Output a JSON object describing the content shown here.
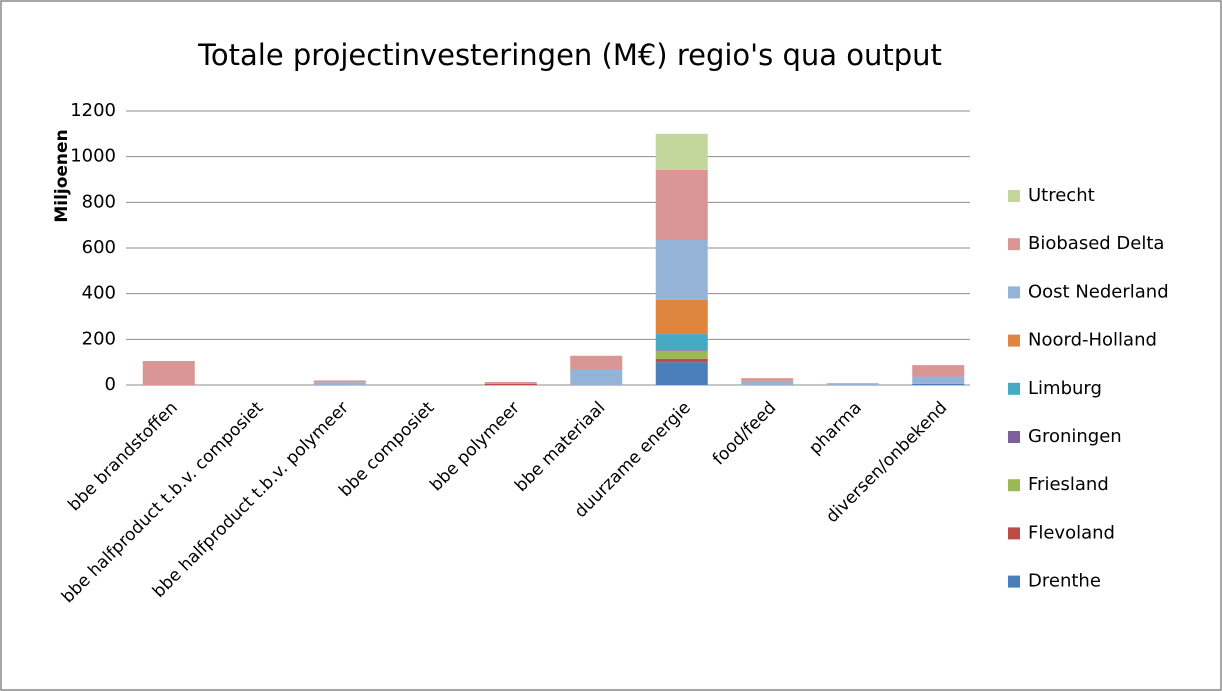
{
  "chart_data": {
    "type": "stacked_bar",
    "title": "Totale projectinvesteringen (M€) regio's qua output",
    "y_label": "Miljoenen",
    "categories": [
      "bbe brandstoffen",
      "bbe halfproduct t.b.v. composiet",
      "bbe halfproduct t.b.v. polymeer",
      "bbe composiet",
      "bbe polymeer",
      "bbe materiaal",
      "duurzame energie",
      "food/feed",
      "pharma",
      "diversen/onbekend"
    ],
    "series": [
      {
        "name": "Drenthe",
        "color": "#4a7ebb",
        "values": [
          0,
          0,
          0,
          0,
          0,
          0,
          100,
          0,
          0,
          5
        ]
      },
      {
        "name": "Flevoland",
        "color": "#be4b48",
        "values": [
          0,
          0,
          0,
          0,
          5,
          0,
          15,
          0,
          0,
          0
        ]
      },
      {
        "name": "Friesland",
        "color": "#98b954",
        "values": [
          0,
          0,
          0,
          0,
          0,
          0,
          35,
          0,
          0,
          0
        ]
      },
      {
        "name": "Groningen",
        "color": "#7d60a0",
        "values": [
          0,
          0,
          0,
          0,
          0,
          0,
          3,
          0,
          0,
          0
        ]
      },
      {
        "name": "Limburg",
        "color": "#46aac5",
        "values": [
          0,
          0,
          0,
          0,
          0,
          0,
          70,
          0,
          0,
          0
        ]
      },
      {
        "name": "Noord-Holland",
        "color": "#e0853e",
        "values": [
          0,
          0,
          0,
          0,
          0,
          0,
          150,
          0,
          0,
          0
        ]
      },
      {
        "name": "Oost Nederland",
        "color": "#95b3d7",
        "values": [
          0,
          0,
          12,
          0,
          0,
          70,
          262,
          15,
          8,
          32
        ]
      },
      {
        "name": "Biobased Delta",
        "color": "#d99694",
        "values": [
          105,
          0,
          8,
          0,
          8,
          58,
          307,
          15,
          0,
          50
        ]
      },
      {
        "name": "Utrecht",
        "color": "#c3d69b",
        "values": [
          0,
          0,
          0,
          0,
          0,
          0,
          158,
          0,
          0,
          0
        ]
      }
    ],
    "ylim": [
      0,
      1200
    ],
    "yticks": [
      0,
      200,
      400,
      600,
      800,
      1000,
      1200
    ],
    "grid": true,
    "legend": "right"
  }
}
